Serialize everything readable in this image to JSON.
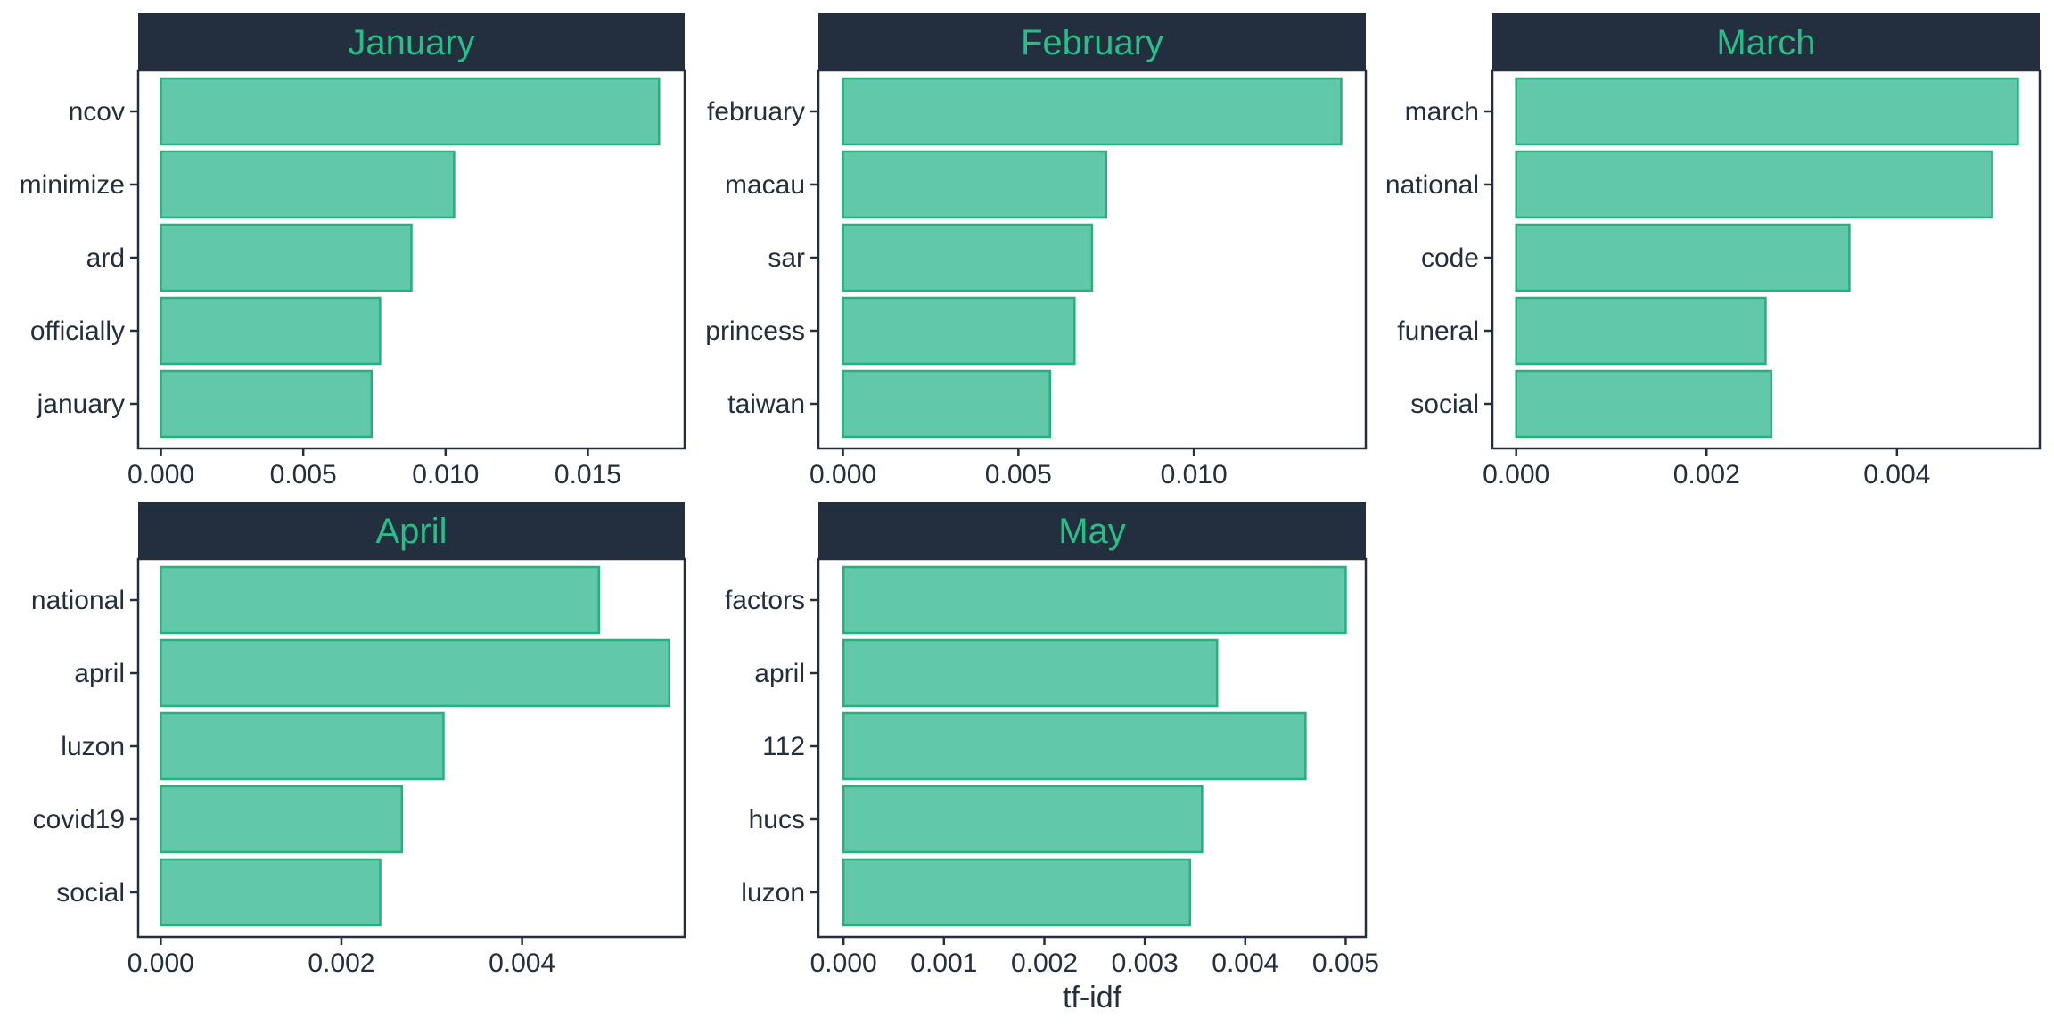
{
  "chart_data": {
    "type": "bar",
    "orientation": "horizontal",
    "facet": true,
    "xlabel": "tf-idf",
    "grid": false,
    "colors": {
      "bar_fill": "#61c9aa",
      "bar_stroke": "#26b07e",
      "strip_bg": "#232f3e",
      "strip_text": "#26bf86",
      "axis": "#232f3e"
    },
    "panels": [
      {
        "title": "January",
        "xlim": [
          -0.0008,
          0.0184
        ],
        "xticks": [
          0,
          0.005,
          0.01,
          0.015
        ],
        "xtick_labels": [
          "0.000",
          "0.005",
          "0.010",
          "0.015"
        ],
        "categories": [
          "ncov",
          "minimize",
          "ard",
          "officially",
          "january"
        ],
        "values": [
          0.0175,
          0.0103,
          0.0088,
          0.0077,
          0.0074
        ]
      },
      {
        "title": "February",
        "xlim": [
          -0.0007,
          0.0149
        ],
        "xticks": [
          0,
          0.005,
          0.01
        ],
        "xtick_labels": [
          "0.000",
          "0.005",
          "0.010"
        ],
        "categories": [
          "february",
          "macau",
          "sar",
          "princess",
          "taiwan"
        ],
        "values": [
          0.0142,
          0.0075,
          0.0071,
          0.0066,
          0.0059
        ]
      },
      {
        "title": "March",
        "xlim": [
          -0.00025,
          0.0055
        ],
        "xticks": [
          0,
          0.002,
          0.004
        ],
        "xtick_labels": [
          "0.000",
          "0.002",
          "0.004"
        ],
        "categories": [
          "march",
          "national",
          "code",
          "funeral",
          "social"
        ],
        "values": [
          0.00527,
          0.005,
          0.0035,
          0.00262,
          0.00268
        ]
      },
      {
        "title": "April",
        "xlim": [
          -0.00025,
          0.0058
        ],
        "xticks": [
          0,
          0.002,
          0.004
        ],
        "xtick_labels": [
          "0.000",
          "0.002",
          "0.004"
        ],
        "categories": [
          "national",
          "april",
          "luzon",
          "covid19",
          "social"
        ],
        "values": [
          0.00485,
          0.00563,
          0.00313,
          0.00267,
          0.00243
        ]
      },
      {
        "title": "May",
        "xlim": [
          -0.00025,
          0.0052
        ],
        "xticks": [
          0,
          0.001,
          0.002,
          0.003,
          0.004,
          0.005
        ],
        "xtick_labels": [
          "0.000",
          "0.001",
          "0.002",
          "0.003",
          "0.004",
          "0.005"
        ],
        "categories": [
          "factors",
          "april",
          "112",
          "hucs",
          "luzon"
        ],
        "values": [
          0.005,
          0.00372,
          0.0046,
          0.00357,
          0.00345
        ]
      }
    ]
  }
}
